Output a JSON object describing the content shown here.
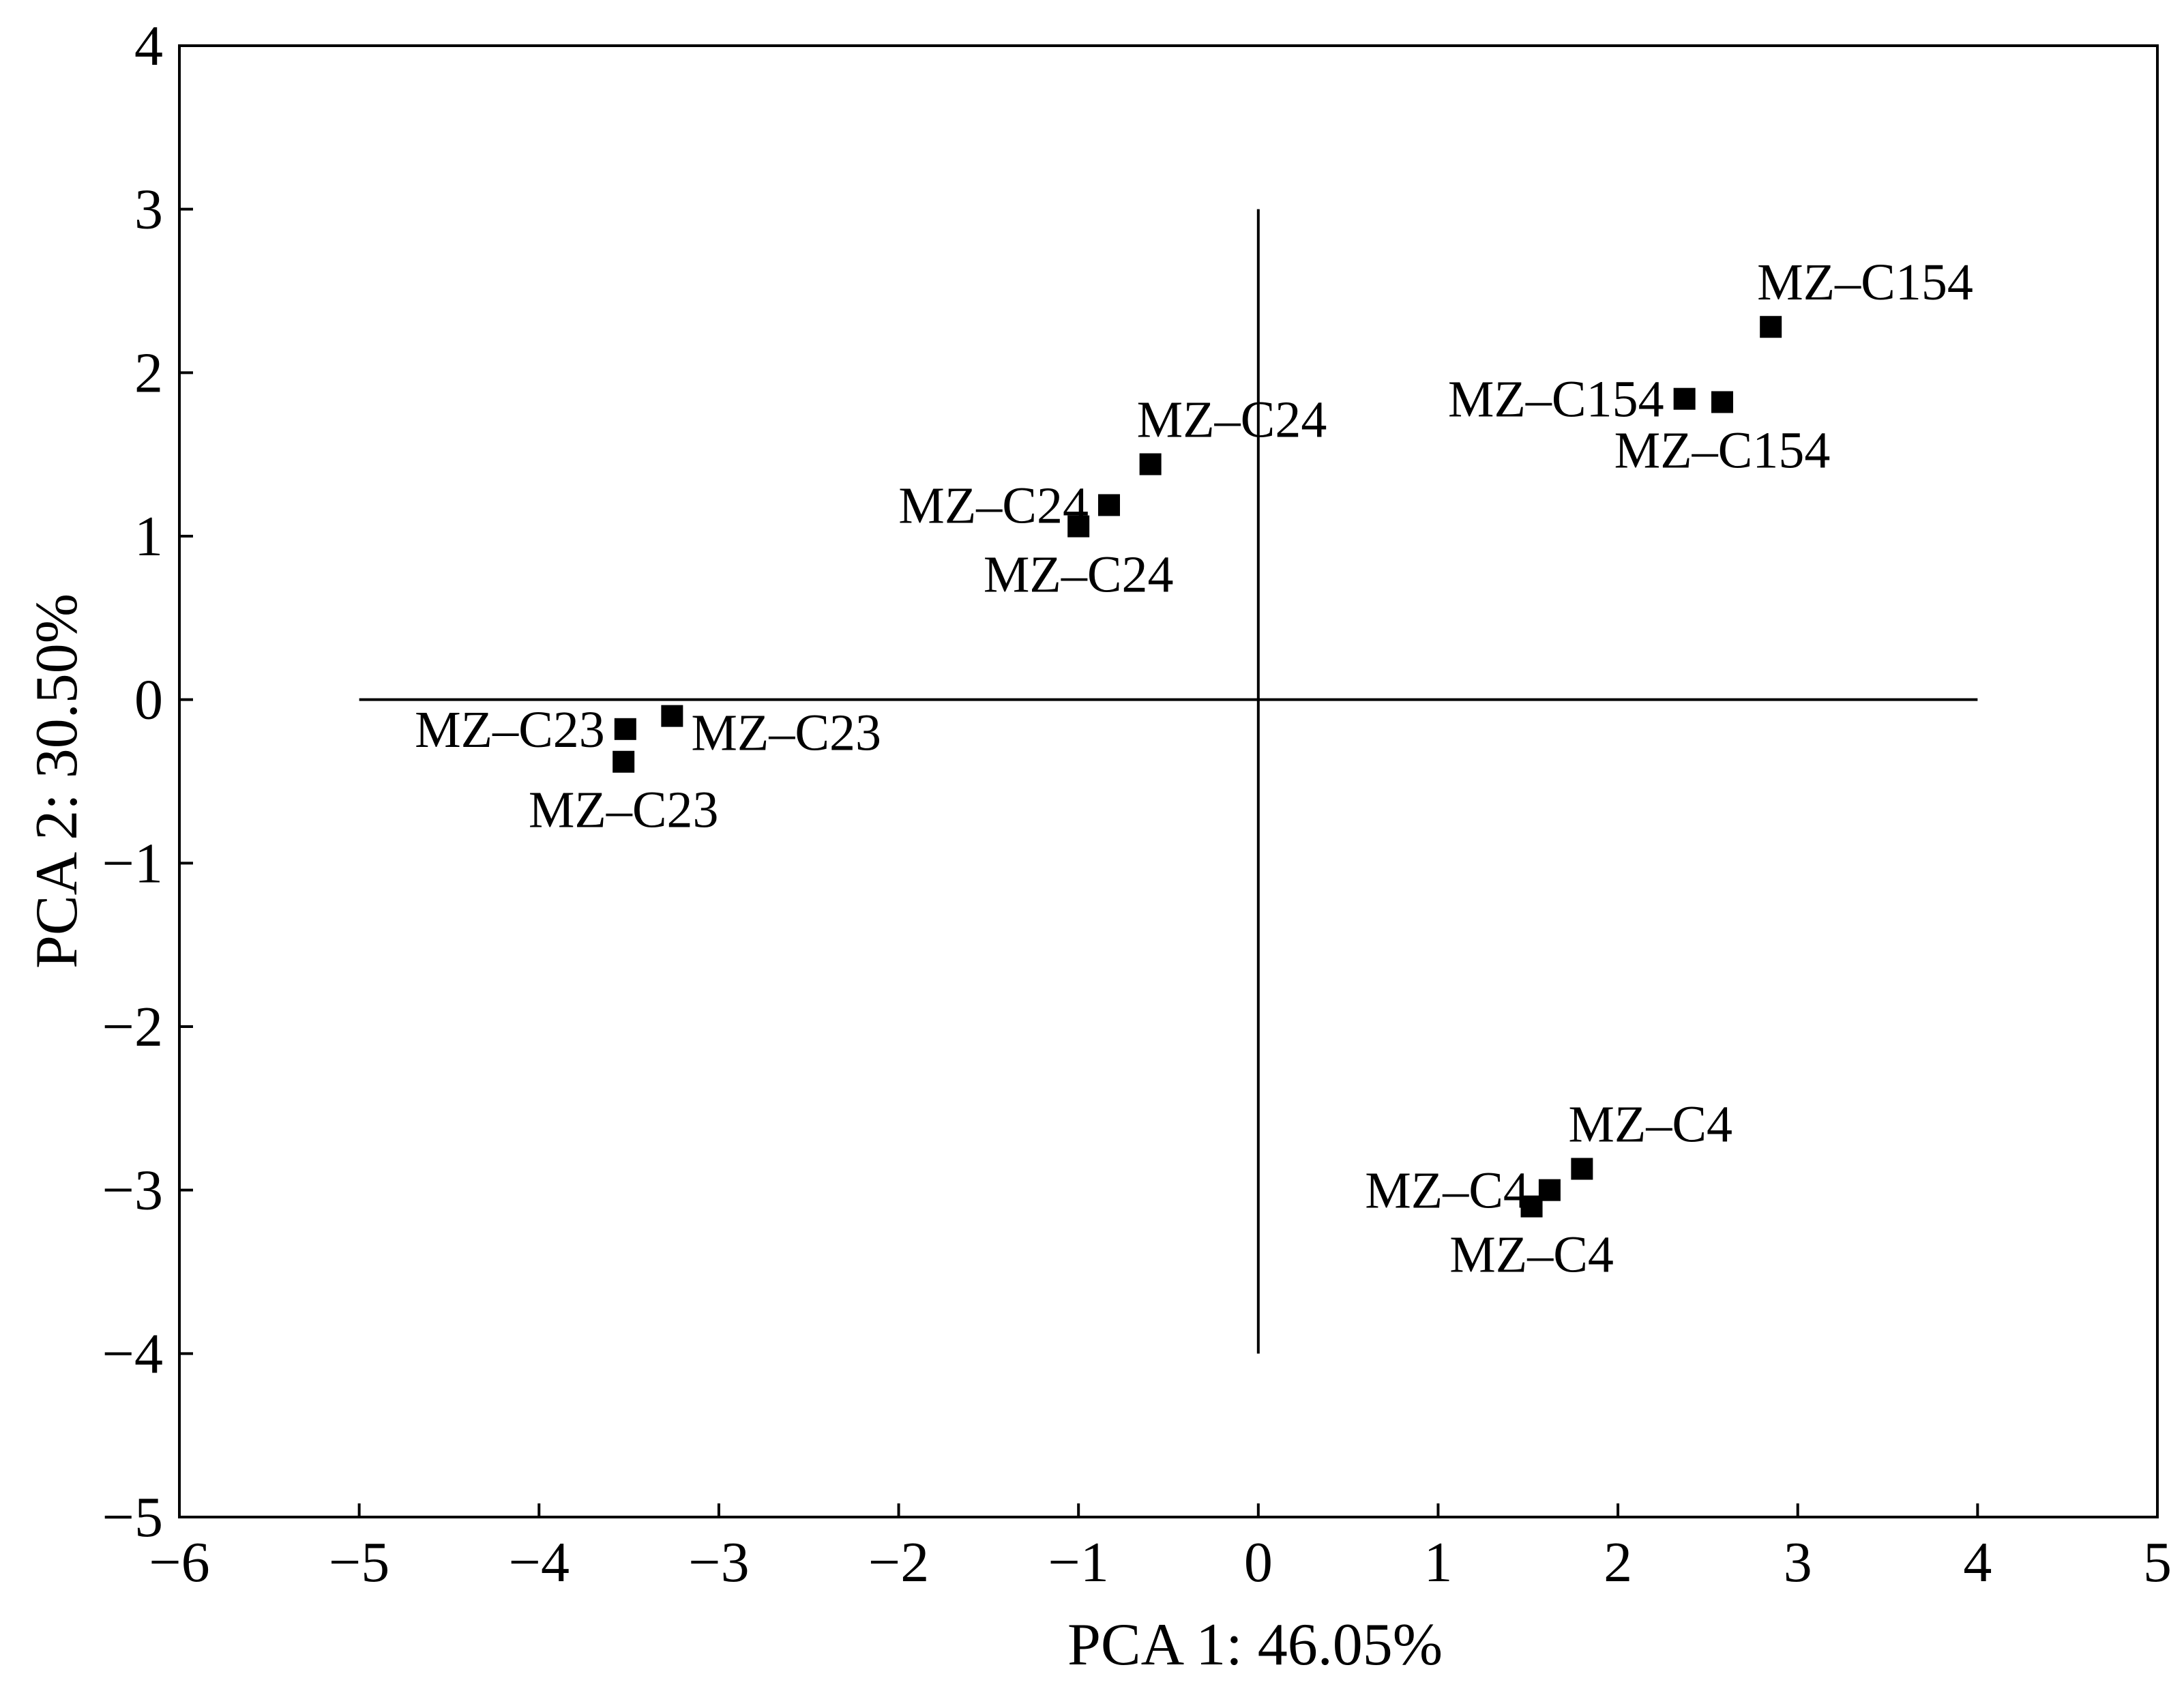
{
  "chart_data": {
    "type": "scatter",
    "xlabel": "PCA 1: 46.05%",
    "ylabel": "PCA 2: 30.50%",
    "xlim": [
      -6,
      5
    ],
    "ylim": [
      -5,
      4
    ],
    "xticks": [
      -6,
      -5,
      -4,
      -3,
      -2,
      -1,
      0,
      1,
      2,
      3,
      4,
      5
    ],
    "yticks": [
      -5,
      -4,
      -3,
      -2,
      -1,
      0,
      1,
      2,
      3,
      4
    ],
    "xtick_labels": [
      "−6",
      "−5",
      "−4",
      "−3",
      "−2",
      "−1",
      "0",
      "1",
      "2",
      "3",
      "4",
      "5"
    ],
    "ytick_labels": [
      "−5",
      "−4",
      "−3",
      "−2",
      "−1",
      "0",
      "1",
      "2",
      "3",
      "4"
    ],
    "reference_lines": {
      "horizontal": {
        "y": 0,
        "x_from": -5,
        "x_to": 4
      },
      "vertical": {
        "x": 0,
        "y_from": -4,
        "y_to": 3
      }
    },
    "grid": false,
    "marker": "square",
    "marker_color": "#000000",
    "points": [
      {
        "label": "MZ–C154",
        "x": 2.85,
        "y": 2.28,
        "label_pos": "above"
      },
      {
        "label": "MZ–C154",
        "x": 2.37,
        "y": 1.84,
        "label_pos": "left"
      },
      {
        "label": "MZ–C154",
        "x": 2.58,
        "y": 1.82,
        "label_pos": "below"
      },
      {
        "label": "MZ–C24",
        "x": -0.6,
        "y": 1.44,
        "label_pos": "above"
      },
      {
        "label": "MZ–C24",
        "x": -0.83,
        "y": 1.19,
        "label_pos": "left"
      },
      {
        "label": "MZ–C24",
        "x": -1.0,
        "y": 1.06,
        "label_pos": "below"
      },
      {
        "label": "MZ–C23",
        "x": -3.52,
        "y": -0.18,
        "label_pos": "left"
      },
      {
        "label": "MZ–C23",
        "x": -3.26,
        "y": -0.1,
        "label_pos": "right"
      },
      {
        "label": "MZ–C23",
        "x": -3.53,
        "y": -0.38,
        "label_pos": "below"
      },
      {
        "label": "MZ–C4",
        "x": 1.8,
        "y": -2.87,
        "label_pos": "above"
      },
      {
        "label": "MZ–C4",
        "x": 1.62,
        "y": -3.0,
        "label_pos": "left"
      },
      {
        "label": "MZ–C4",
        "x": 1.52,
        "y": -3.1,
        "label_pos": "below"
      }
    ]
  }
}
